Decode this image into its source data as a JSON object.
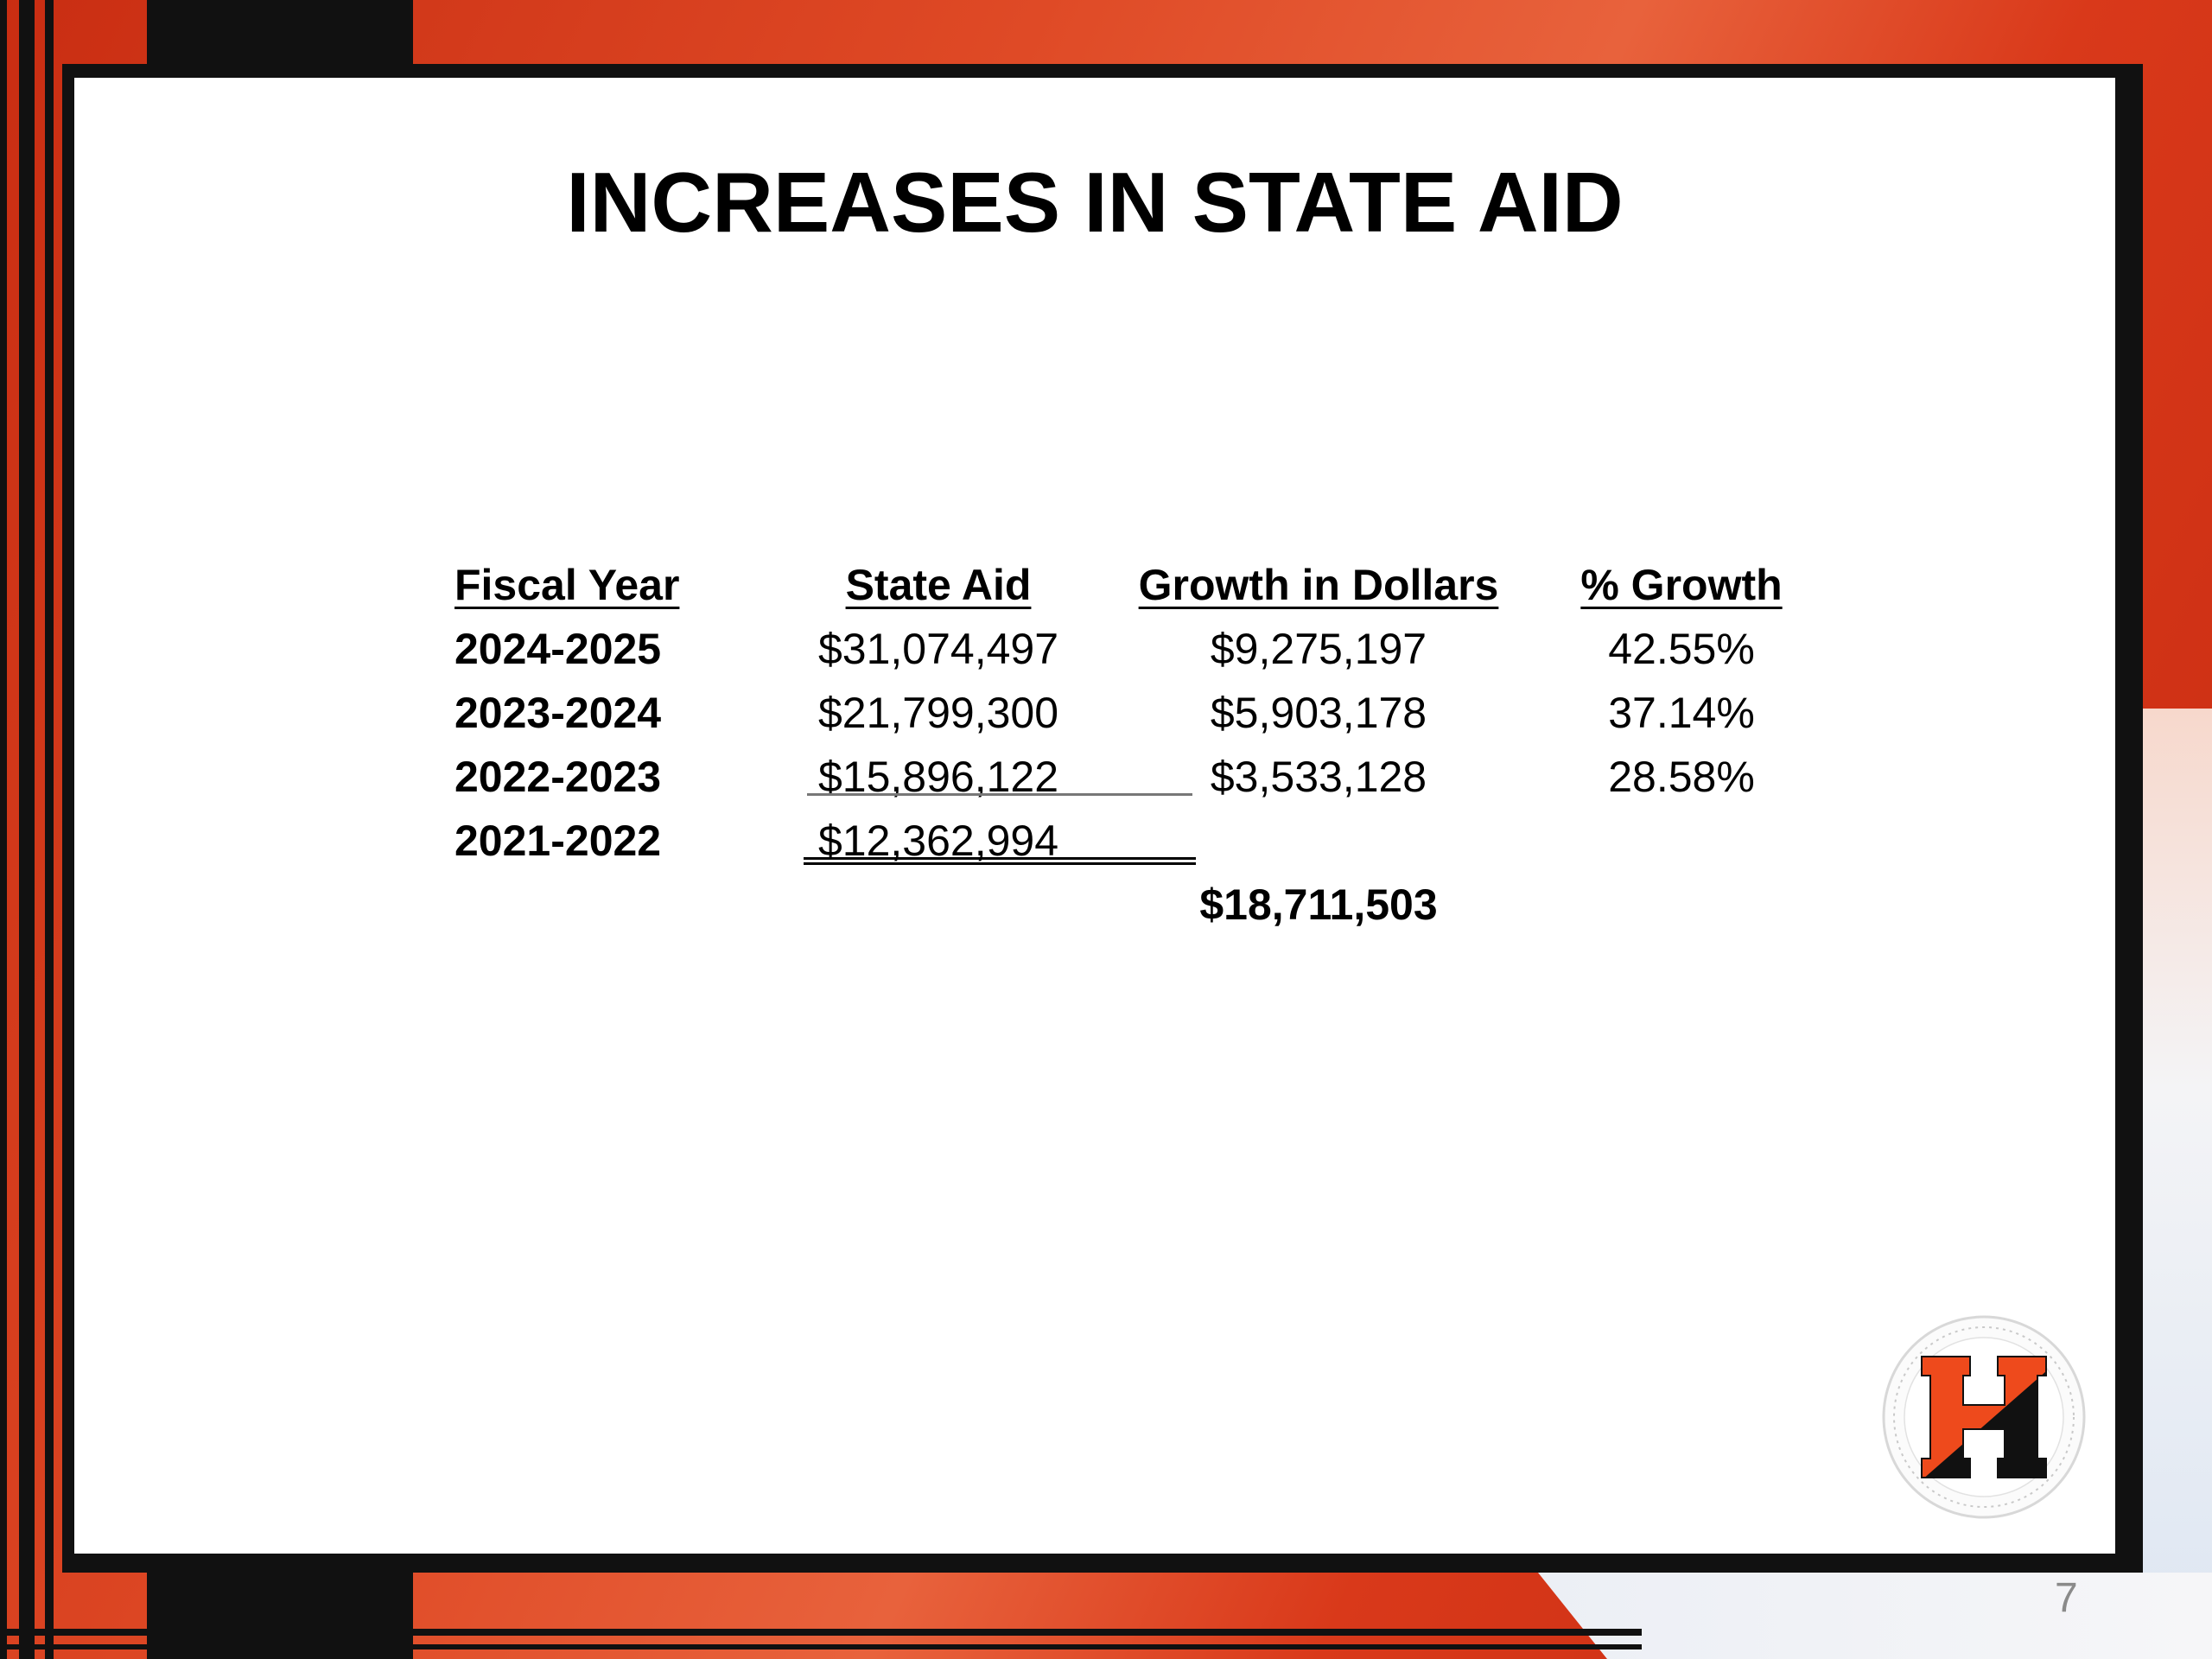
{
  "slide": {
    "title": "INCREASES IN STATE AID",
    "page_number": "7"
  },
  "table": {
    "headers": [
      "Fiscal Year",
      "State Aid",
      "Growth in Dollars",
      "% Growth"
    ],
    "rows": [
      {
        "year": "2024-2025",
        "aid": "$31,074,497",
        "growth": "$9,275,197",
        "pct": "42.55%"
      },
      {
        "year": "2023-2024",
        "aid": "$21,799,300",
        "growth": "$5,903,178",
        "pct": "37.14%"
      },
      {
        "year": "2022-2023",
        "aid": "$15,896,122",
        "growth": "$3,533,128",
        "pct": "28.58%"
      },
      {
        "year": "2021-2022",
        "aid": "$12,362,994",
        "growth": "",
        "pct": ""
      }
    ],
    "total_growth": "$18,711,503"
  },
  "logo": {
    "icon": "school-seal-h-icon",
    "letter": "H",
    "colors": {
      "orange": "#ee4a1c",
      "black": "#111111"
    }
  }
}
